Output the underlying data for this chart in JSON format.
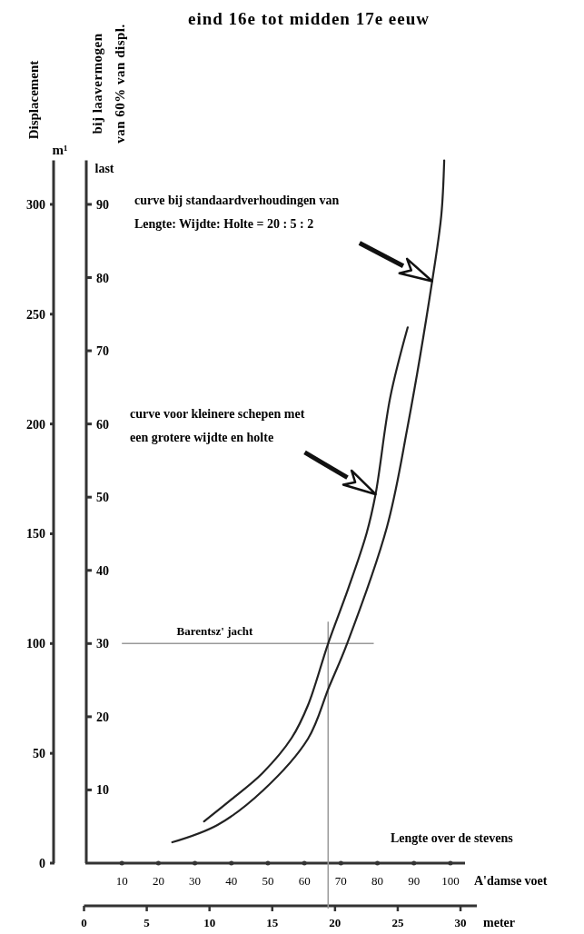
{
  "chart_data": {
    "type": "line",
    "title": "eind 16e tot midden 17e eeuw",
    "ylabel": "Displacement",
    "y2label": "bij laavermogen\nvan 60% van displ.",
    "xlabel": "A'damse voet",
    "x2label": "meter",
    "xlim": [
      0,
      104
    ],
    "xticks": [
      10,
      20,
      30,
      40,
      50,
      60,
      70,
      80,
      90,
      100
    ],
    "x2lim": [
      0,
      31.3
    ],
    "x2ticks": [
      0,
      5,
      10,
      15,
      20,
      25,
      30
    ],
    "ylim": [
      0,
      320
    ],
    "yticks": [
      0,
      50,
      100,
      150,
      200,
      250,
      300
    ],
    "y2lim": [
      0,
      96
    ],
    "y2ticks": [
      10,
      20,
      30,
      40,
      50,
      60,
      70,
      80,
      90
    ],
    "grid": false,
    "marker": "none",
    "line_style": "solid",
    "series": [
      {
        "color": "#222222",
        "x": [
          32.5,
          40,
          48.5,
          56.5,
          61,
          66.5,
          72,
          77,
          79.5,
          83.5,
          88.3
        ],
        "values": [
          19,
          29,
          41,
          57,
          72,
          100,
          125,
          150,
          168,
          212,
          244
        ]
      },
      {
        "color": "#222222",
        "x": [
          23.8,
          36.2,
          48.6,
          61,
          66.7,
          71.7,
          82.6,
          88.3,
          95,
          97.5,
          98.3
        ],
        "values": [
          9.5,
          17.4,
          33,
          56.7,
          80,
          100,
          153,
          199,
          265,
          295,
          320
        ]
      }
    ],
    "ref_lines": [
      {
        "axis": "y",
        "value": 100,
        "label": "Barentsz' jacht",
        "color": "#999999"
      },
      {
        "axis": "x",
        "value": 66.5,
        "label": null,
        "color": "#999999"
      }
    ],
    "annotations": [
      "curve bij standaardverhoudingen van\nLengte: Wijdte: Holte = 20 : 5 : 2",
      "curve voor kleinere schepen met\neen grotere wijdte en holte",
      "m¹",
      "last",
      "Lengte over de stevens"
    ]
  }
}
